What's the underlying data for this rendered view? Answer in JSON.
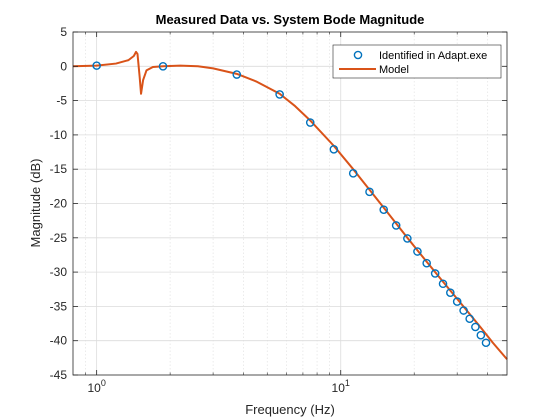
{
  "chart_data": {
    "type": "line",
    "title": "Measured Data vs. System Bode Magnitude",
    "xlabel": "Frequency (Hz)",
    "ylabel": "Magnitude (dB)",
    "xscale": "log",
    "xlim": [
      0.8,
      48
    ],
    "ylim": [
      -45,
      5
    ],
    "yticks": [
      5,
      0,
      -5,
      -10,
      -15,
      -20,
      -25,
      -30,
      -35,
      -40,
      -45
    ],
    "xticks": [
      {
        "value": 1,
        "base": "10",
        "exp": "0"
      },
      {
        "value": 10,
        "base": "10",
        "exp": "1"
      }
    ],
    "grid": true,
    "legend": {
      "position": "top-right"
    },
    "colors": {
      "measured": "#0072BD",
      "model": "#D95319"
    },
    "series": [
      {
        "name": "Identified in Adapt.exe",
        "style": "markers",
        "points": [
          [
            1.0,
            0.1
          ],
          [
            1.87,
            0.0
          ],
          [
            3.75,
            -1.2
          ],
          [
            5.62,
            -4.1
          ],
          [
            7.5,
            -8.2
          ],
          [
            9.37,
            -12.1
          ],
          [
            11.25,
            -15.6
          ],
          [
            13.12,
            -18.3
          ],
          [
            15.0,
            -20.9
          ],
          [
            16.87,
            -23.2
          ],
          [
            18.75,
            -25.1
          ],
          [
            20.62,
            -27.0
          ],
          [
            22.5,
            -28.7
          ],
          [
            24.37,
            -30.2
          ],
          [
            26.25,
            -31.7
          ],
          [
            28.12,
            -33.0
          ],
          [
            30.0,
            -34.3
          ],
          [
            31.87,
            -35.6
          ],
          [
            33.75,
            -36.8
          ],
          [
            35.62,
            -38.0
          ],
          [
            37.5,
            -39.2
          ],
          [
            39.37,
            -40.3
          ]
        ]
      },
      {
        "name": "Model",
        "style": "line",
        "points": [
          [
            0.8,
            0.0
          ],
          [
            1.0,
            0.1
          ],
          [
            1.2,
            0.4
          ],
          [
            1.35,
            0.9
          ],
          [
            1.42,
            1.5
          ],
          [
            1.45,
            2.1
          ],
          [
            1.47,
            1.8
          ],
          [
            1.5,
            -1.5
          ],
          [
            1.52,
            -4.0
          ],
          [
            1.55,
            -2.0
          ],
          [
            1.6,
            -0.6
          ],
          [
            1.7,
            -0.1
          ],
          [
            1.87,
            0.0
          ],
          [
            2.2,
            0.1
          ],
          [
            2.6,
            0.0
          ],
          [
            3.0,
            -0.3
          ],
          [
            3.75,
            -1.1
          ],
          [
            4.5,
            -2.2
          ],
          [
            5.62,
            -4.0
          ],
          [
            6.5,
            -5.8
          ],
          [
            7.5,
            -7.9
          ],
          [
            9.37,
            -11.6
          ],
          [
            11.25,
            -15.0
          ],
          [
            13.12,
            -18.0
          ],
          [
            15.0,
            -20.6
          ],
          [
            18.75,
            -25.0
          ],
          [
            22.5,
            -28.5
          ],
          [
            26.25,
            -31.4
          ],
          [
            30.0,
            -33.9
          ],
          [
            33.75,
            -36.1
          ],
          [
            37.5,
            -38.1
          ],
          [
            42.0,
            -40.3
          ],
          [
            48.0,
            -42.7
          ]
        ]
      }
    ]
  }
}
